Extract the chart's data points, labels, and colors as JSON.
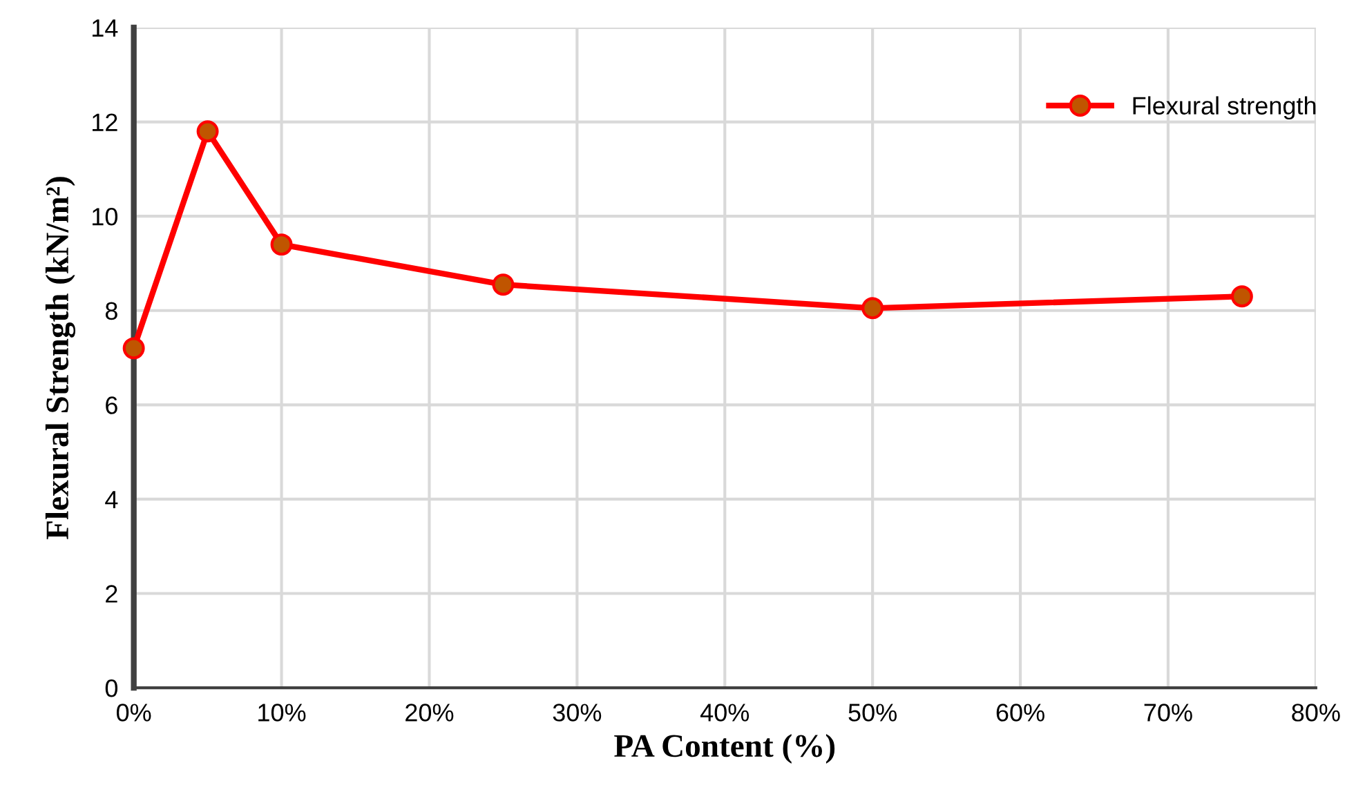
{
  "chart_data": {
    "type": "line",
    "xlabel": "PA Content (%)",
    "ylabel": "Flexural Strength (kN/m²)",
    "x": [
      0,
      5,
      10,
      25,
      50,
      75
    ],
    "series": [
      {
        "name": "Flexural strength",
        "color": "#ff0000",
        "values": [
          7.2,
          11.8,
          9.4,
          8.55,
          8.05,
          8.3
        ]
      }
    ],
    "xlim": [
      0,
      80
    ],
    "xticks": [
      {
        "value": 0,
        "label": "0%"
      },
      {
        "value": 10,
        "label": "10%"
      },
      {
        "value": 20,
        "label": "20%"
      },
      {
        "value": 30,
        "label": "30%"
      },
      {
        "value": 40,
        "label": "40%"
      },
      {
        "value": 50,
        "label": "50%"
      },
      {
        "value": 60,
        "label": "60%"
      },
      {
        "value": 70,
        "label": "70%"
      },
      {
        "value": 80,
        "label": "80%"
      }
    ],
    "ylim": [
      0,
      14
    ],
    "yticks": [
      0,
      2,
      4,
      6,
      8,
      10,
      12,
      14
    ],
    "grid": true,
    "legend": "top right",
    "marker": "circle",
    "line_style": "solid"
  }
}
